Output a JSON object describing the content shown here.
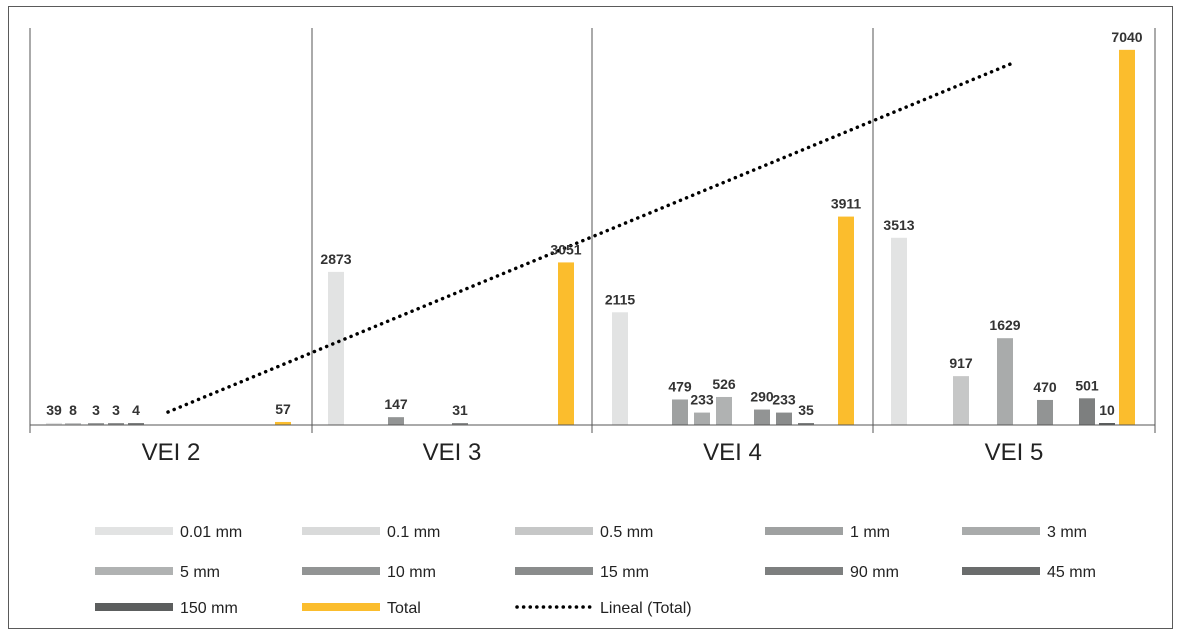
{
  "chart_data": {
    "type": "bar",
    "title": "",
    "xlabel": "",
    "ylabel": "",
    "ylim": [
      0,
      7600
    ],
    "grid": false,
    "legend_position": "bottom",
    "categories": [
      "VEI 2",
      "VEI 3",
      "VEI 4",
      "VEI 5"
    ],
    "series": [
      {
        "name": "0.01 mm",
        "color": "#e2e3e3",
        "values": [
          39,
          2873,
          2115,
          3513
        ]
      },
      {
        "name": "0.1 mm",
        "color": "#d9dada",
        "values": [
          null,
          null,
          null,
          null
        ]
      },
      {
        "name": "0.5 mm",
        "color": "#c6c7c7",
        "values": [
          8,
          null,
          null,
          917
        ]
      },
      {
        "name": "1 mm",
        "color": "#9fa1a1",
        "values": [
          3,
          null,
          479,
          null
        ]
      },
      {
        "name": "3 mm",
        "color": "#a9abab",
        "values": [
          null,
          null,
          233,
          1629
        ]
      },
      {
        "name": "5 mm",
        "color": "#b0b2b2",
        "values": [
          null,
          null,
          526,
          null
        ]
      },
      {
        "name": "10 mm",
        "color": "#929494",
        "values": [
          3,
          147,
          290,
          470
        ]
      },
      {
        "name": "15 mm",
        "color": "#8a8c8c",
        "values": [
          null,
          31,
          233,
          null
        ]
      },
      {
        "name": "90 mm",
        "color": "#7d7f7f",
        "values": [
          4,
          null,
          35,
          501
        ]
      },
      {
        "name": "45 mm",
        "color": "#6a6c6c",
        "values": [
          null,
          null,
          null,
          null
        ]
      },
      {
        "name": "150 mm",
        "color": "#5c5e5e",
        "values": [
          null,
          null,
          null,
          10
        ]
      },
      {
        "name": "Total",
        "color": "#fbbd2d",
        "values": [
          57,
          3051,
          3911,
          7040
        ]
      }
    ],
    "trendline": {
      "name": "Lineal (Total)",
      "of": "Total",
      "style": "dotted",
      "color": "#000000"
    },
    "legend": [
      "0.01 mm",
      "0.1 mm",
      "0.5 mm",
      "1 mm",
      "3 mm",
      "5 mm",
      "10 mm",
      "15 mm",
      "90 mm",
      "45 mm",
      "150 mm",
      "Total",
      "Lineal (Total)"
    ]
  }
}
